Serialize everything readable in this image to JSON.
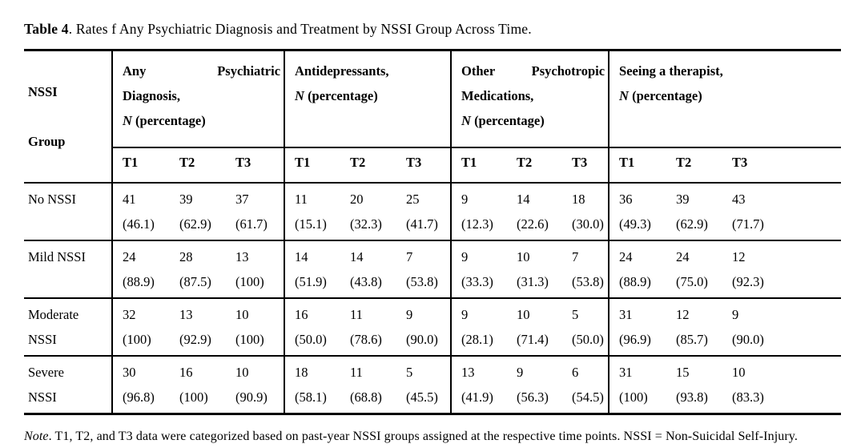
{
  "title": {
    "bold": "Table 4",
    "text": ". Rates f Any Psychiatric Diagnosis and Treatment by NSSI Group Across Time."
  },
  "table": {
    "corner": [
      "NSSI",
      "Group"
    ],
    "column_groups": [
      {
        "word1": "Any",
        "word2": "Psychiatric",
        "line2": "Diagnosis,",
        "n": "N",
        "percent": " (percentage)"
      },
      {
        "word1": "Antidepressants,",
        "n": "N",
        "percent": " (percentage)"
      },
      {
        "word1": "Other",
        "word2": "Psychotropic",
        "line2": "Medications,",
        "n": "N",
        "percent": " (percentage)"
      },
      {
        "word1": "Seeing a therapist,",
        "n": "N",
        "percent": " (percentage)"
      }
    ],
    "time_points": [
      "T1",
      "T2",
      "T3"
    ],
    "rows": [
      {
        "group_lines": [
          "No NSSI"
        ],
        "values": [
          [
            "41",
            "(46.1)"
          ],
          [
            "39",
            "(62.9)"
          ],
          [
            "37",
            "(61.7)"
          ],
          [
            "11",
            "(15.1)"
          ],
          [
            "20",
            "(32.3)"
          ],
          [
            "25",
            "(41.7)"
          ],
          [
            "9",
            "(12.3)"
          ],
          [
            "14",
            "(22.6)"
          ],
          [
            "18",
            "(30.0)"
          ],
          [
            "36",
            "(49.3)"
          ],
          [
            "39",
            "(62.9)"
          ],
          [
            "43",
            "(71.7)"
          ]
        ]
      },
      {
        "group_lines": [
          "Mild NSSI"
        ],
        "values": [
          [
            "24",
            "(88.9)"
          ],
          [
            "28",
            "(87.5)"
          ],
          [
            "13",
            "(100)"
          ],
          [
            "14",
            "(51.9)"
          ],
          [
            "14",
            "(43.8)"
          ],
          [
            "7",
            "(53.8)"
          ],
          [
            "9",
            "(33.3)"
          ],
          [
            "10",
            "(31.3)"
          ],
          [
            "7",
            "(53.8)"
          ],
          [
            "24",
            "(88.9)"
          ],
          [
            "24",
            "(75.0)"
          ],
          [
            "12",
            "(92.3)"
          ]
        ]
      },
      {
        "group_lines": [
          "Moderate",
          "NSSI"
        ],
        "values": [
          [
            "32",
            "(100)"
          ],
          [
            "13",
            "(92.9)"
          ],
          [
            "10",
            "(100)"
          ],
          [
            "16",
            "(50.0)"
          ],
          [
            "11",
            "(78.6)"
          ],
          [
            "9",
            "(90.0)"
          ],
          [
            "9",
            "(28.1)"
          ],
          [
            "10",
            "(71.4)"
          ],
          [
            "5",
            "(50.0)"
          ],
          [
            "31",
            "(96.9)"
          ],
          [
            "12",
            "(85.7)"
          ],
          [
            "9",
            "(90.0)"
          ]
        ]
      },
      {
        "group_lines": [
          "Severe",
          "NSSI"
        ],
        "values": [
          [
            "30",
            "(96.8)"
          ],
          [
            "16",
            "(100)"
          ],
          [
            "10",
            "(90.9)"
          ],
          [
            "18",
            "(58.1)"
          ],
          [
            "11",
            "(68.8)"
          ],
          [
            "5",
            "(45.5)"
          ],
          [
            "13",
            "(41.9)"
          ],
          [
            "9",
            "(56.3)"
          ],
          [
            "6",
            "(54.5)"
          ],
          [
            "31",
            "(100)"
          ],
          [
            "15",
            "(93.8)"
          ],
          [
            "10",
            "(83.3)"
          ]
        ]
      }
    ]
  },
  "note": {
    "label": "Note",
    "text": ". T1, T2, and T3 data were categorized based on past-year NSSI groups assigned at the respective time points. NSSI = Non-Suicidal Self-Injury."
  }
}
